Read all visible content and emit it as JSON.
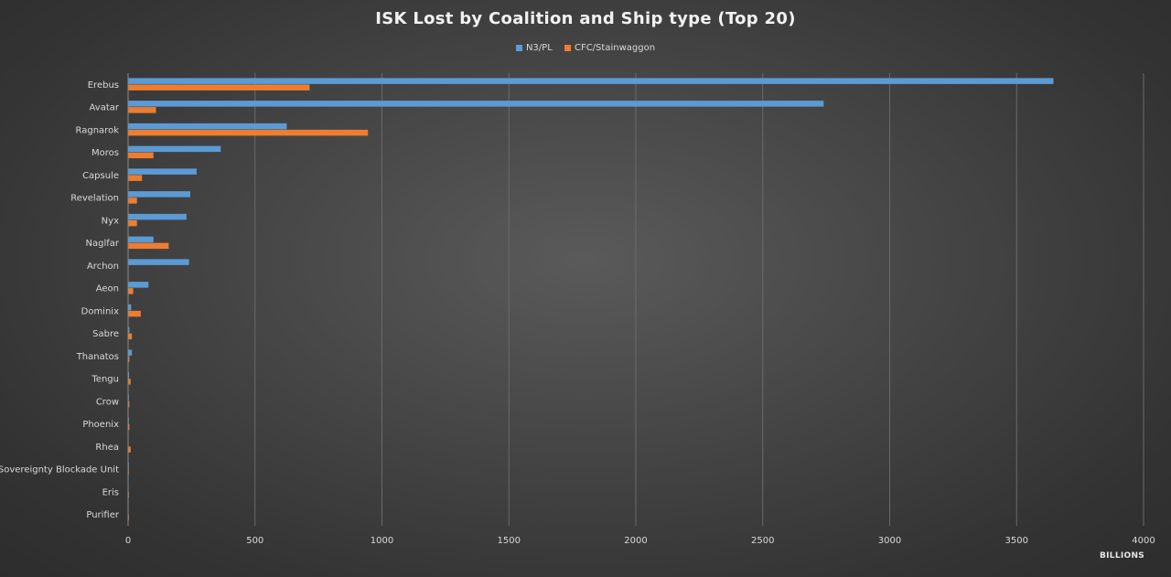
{
  "chart_data": {
    "type": "bar",
    "orientation": "horizontal",
    "title": "ISK Lost by Coalition  and Ship type (Top 20)",
    "xlabel": "BILLIONS",
    "ylabel": "",
    "xlim": [
      0,
      4000
    ],
    "x_ticks": [
      0,
      500,
      1000,
      1500,
      2000,
      2500,
      3000,
      3500,
      4000
    ],
    "grid": "vertical",
    "legend_position": "top",
    "categories": [
      "Erebus",
      "Avatar",
      "Ragnarok",
      "Moros",
      "Capsule",
      "Revelation",
      "Nyx",
      "Naglfar",
      "Archon",
      "Aeon",
      "Dominix",
      "Sabre",
      "Thanatos",
      "Tengu",
      "Crow",
      "Phoenix",
      "Rhea",
      "Sovereignty Blockade Unit",
      "Eris",
      "Purifier"
    ],
    "series": [
      {
        "name": "N3/PL",
        "color": "#5b9bd5",
        "values": [
          3645,
          2740,
          625,
          365,
          270,
          245,
          230,
          100,
          240,
          80,
          12,
          5,
          15,
          4,
          3,
          3,
          2,
          3,
          2,
          2
        ]
      },
      {
        "name": "CFC/Stainwaggon",
        "color": "#ed7d31",
        "values": [
          715,
          110,
          945,
          100,
          55,
          35,
          35,
          160,
          0,
          20,
          50,
          15,
          5,
          10,
          5,
          5,
          10,
          3,
          3,
          3
        ]
      }
    ]
  }
}
